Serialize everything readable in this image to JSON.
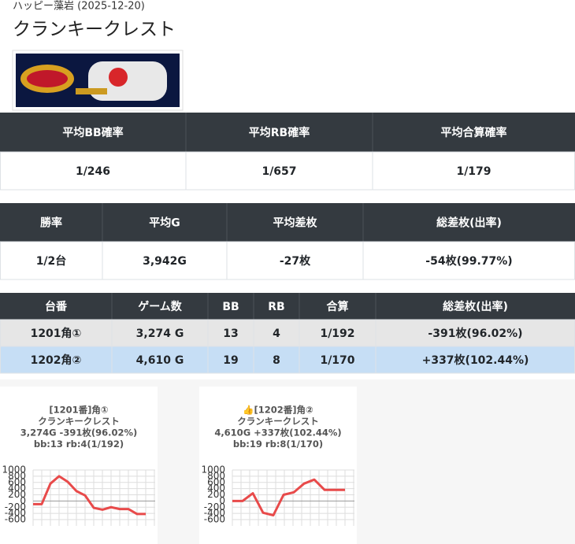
{
  "header": {
    "subtitle": "ハッピー藻岩 (2025-12-20)",
    "title": "クランキークレスト"
  },
  "summary_table": {
    "columns": [
      "平均BB確率",
      "平均RB確率",
      "平均合算確率"
    ],
    "rows": [
      [
        "1/246",
        "1/657",
        "1/179"
      ]
    ]
  },
  "stats_table": {
    "columns": [
      "勝率",
      "平均G",
      "平均差枚",
      "総差枚(出率)"
    ],
    "rows": [
      [
        "1/2台",
        "3,942G",
        "-27枚",
        "-54枚(99.77%)"
      ]
    ]
  },
  "machine_table": {
    "columns": [
      "台番",
      "ゲーム数",
      "BB",
      "RB",
      "合算",
      "総差枚(出率)"
    ],
    "rows": [
      [
        "1201角①",
        "3,274 G",
        "13",
        "4",
        "1/192",
        "-391枚(96.02%)"
      ],
      [
        "1202角②",
        "4,610 G",
        "19",
        "8",
        "1/170",
        "+337枚(102.44%)"
      ]
    ]
  },
  "charts": [
    {
      "type": "line",
      "title_lines": [
        "[1201番]角①",
        "クランキークレスト",
        "3,274G -391枚(96.02%)",
        "bb:13 rb:4(1/192)"
      ],
      "values": [
        -100,
        -100,
        560,
        800,
        620,
        320,
        180,
        -220,
        -280,
        -200,
        -260,
        -260,
        -420,
        -420
      ],
      "color": "#e84a4a",
      "ylim": [
        -600,
        1000
      ],
      "yticks": [
        1000,
        800,
        600,
        400,
        200,
        0,
        -200,
        -400,
        -600
      ]
    },
    {
      "type": "line",
      "title_lines": [
        "👍[1202番]角②",
        "クランキークレスト",
        "4,610G +337枚(102.44%)",
        "bb:19 rb:8(1/170)"
      ],
      "values": [
        0,
        0,
        250,
        -380,
        -460,
        200,
        280,
        560,
        690,
        360,
        360,
        360
      ],
      "color": "#e84a4a",
      "ylim": [
        -600,
        1000
      ],
      "yticks": [
        1000,
        800,
        600,
        400,
        200,
        0,
        -200,
        -400,
        -600
      ]
    }
  ]
}
